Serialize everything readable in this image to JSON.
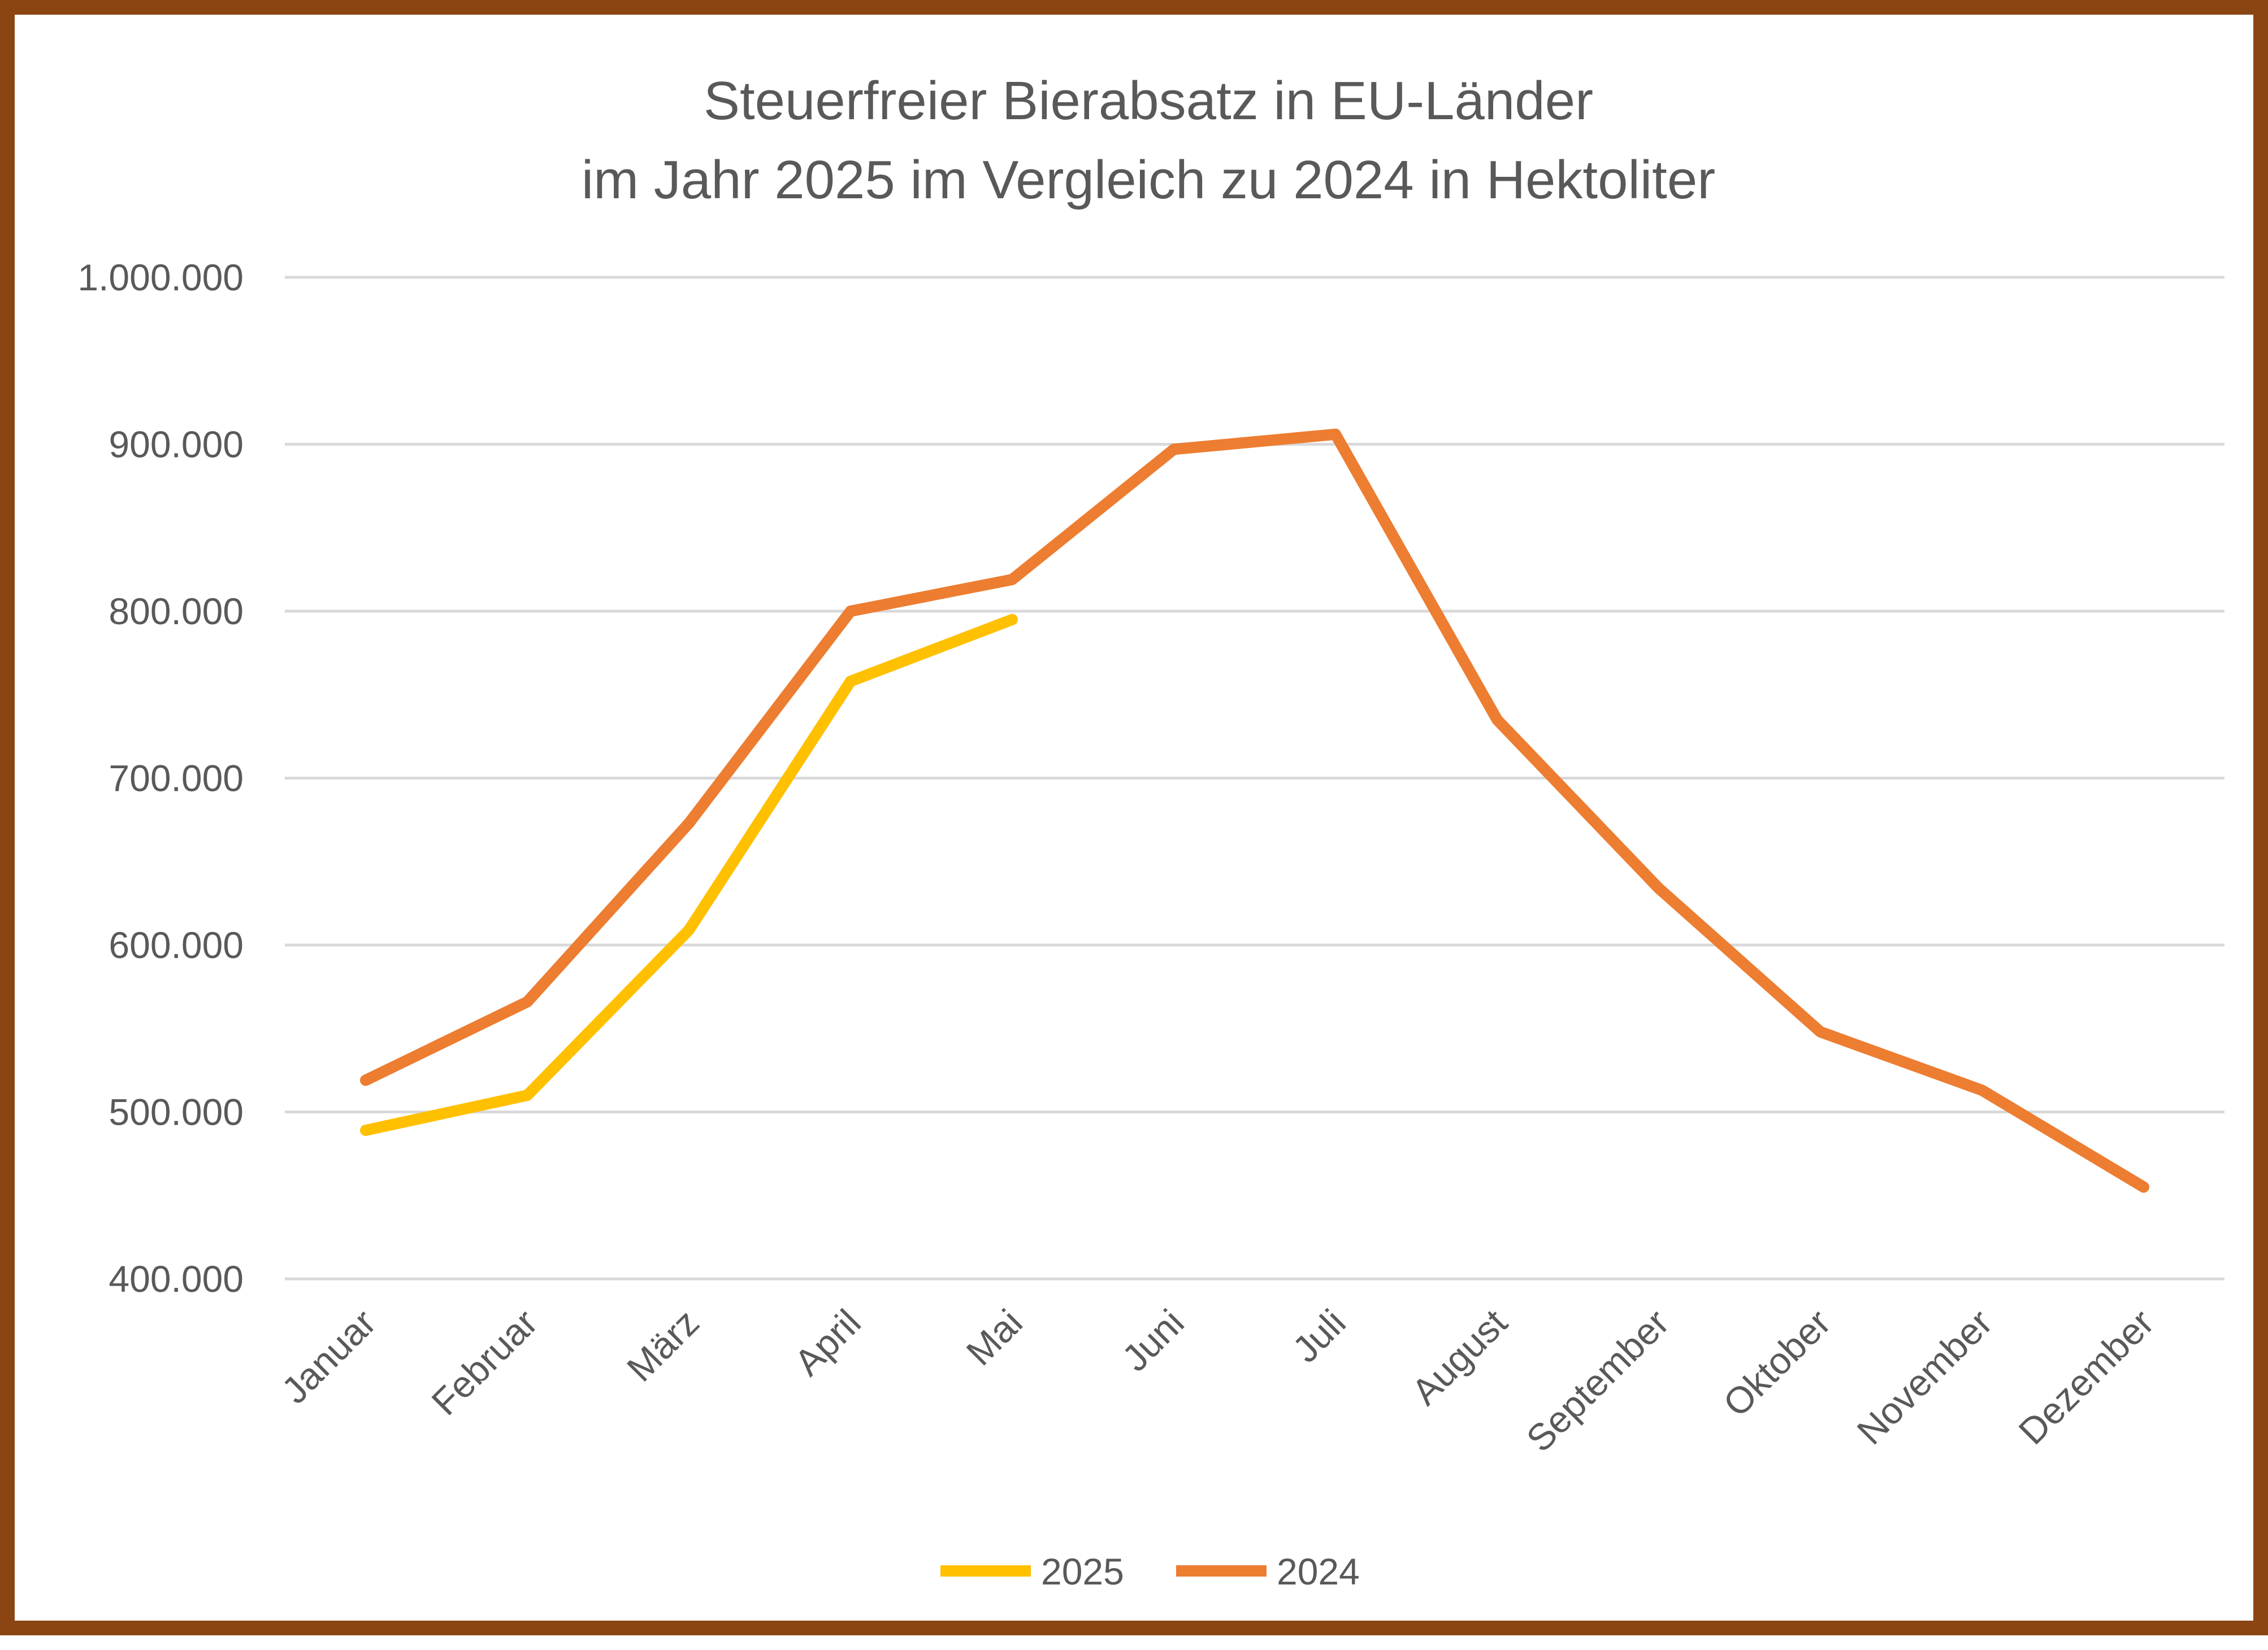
{
  "chart_data": {
    "type": "line",
    "title": [
      "Steuerfreier Bierabsatz in EU-Länder",
      "im Jahr 2025 im Vergleich zu 2024 in Hektoliter"
    ],
    "xlabel": "",
    "ylabel": "",
    "categories": [
      "Januar",
      "Februar",
      "März",
      "April",
      "Mai",
      "Juni",
      "Juli",
      "August",
      "September",
      "Oktober",
      "November",
      "Dezember"
    ],
    "ylim": [
      400000,
      1000000
    ],
    "yticks": [
      {
        "value": 400000,
        "label": "400.000"
      },
      {
        "value": 500000,
        "label": "500.000"
      },
      {
        "value": 600000,
        "label": "600.000"
      },
      {
        "value": 700000,
        "label": "700.000"
      },
      {
        "value": 800000,
        "label": "800.000"
      },
      {
        "value": 900000,
        "label": "900.000"
      },
      {
        "value": 1000000,
        "label": "1.000.000"
      }
    ],
    "grid": true,
    "legend_position": "bottom",
    "series": [
      {
        "name": "2025",
        "color": "#FFC000",
        "values": [
          489000,
          510000,
          609000,
          758000,
          795000,
          null,
          null,
          null,
          null,
          null,
          null,
          null
        ]
      },
      {
        "name": "2024",
        "color": "#ED7D31",
        "values": [
          519000,
          566000,
          673000,
          800000,
          819000,
          897000,
          906000,
          735000,
          634000,
          548000,
          513000,
          455000
        ]
      }
    ]
  }
}
